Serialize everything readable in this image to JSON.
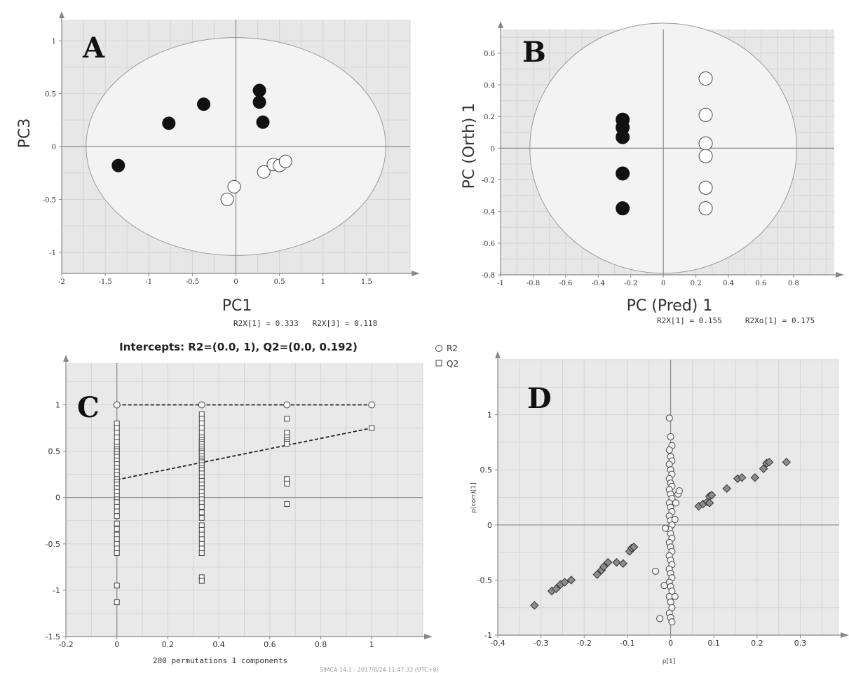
{
  "colors": {
    "plot_bg": "#e7e7e7",
    "ellipse_fill": "#f3f3f3",
    "grid": "#d4d4d4",
    "axis": "#888888",
    "dark": "#111111",
    "light": "#ffffff",
    "marker_gray": "#8c8c8c"
  },
  "footer": "SIMCA 14.1 - 2017/8/24 11:47:33 (UTC+8)",
  "chart_data": [
    {
      "id": "A",
      "type": "scatter",
      "panel_label": "A",
      "xlabel": "PC1",
      "ylabel": "PC3",
      "xlim": [
        -2,
        2
      ],
      "ylim": [
        -1.2,
        1.2
      ],
      "xticks": [
        -2,
        -1.5,
        -1,
        -0.5,
        0,
        0.5,
        1,
        1.5
      ],
      "yticks": [
        -1,
        -0.5,
        0,
        0.5,
        1
      ],
      "note": "R2X[1] = 0.333   R2X[3] = 0.118",
      "ellipse": {
        "rx": 1.72,
        "ry": 1.03
      },
      "series": [
        {
          "style": "filled",
          "points": [
            [
              -1.35,
              -0.18
            ],
            [
              -0.77,
              0.22
            ],
            [
              -0.37,
              0.4
            ],
            [
              0.27,
              0.53
            ],
            [
              0.27,
              0.42
            ],
            [
              0.31,
              0.23
            ]
          ]
        },
        {
          "style": "open",
          "points": [
            [
              -0.1,
              -0.5
            ],
            [
              -0.02,
              -0.38
            ],
            [
              0.32,
              -0.24
            ],
            [
              0.43,
              -0.17
            ],
            [
              0.5,
              -0.18
            ],
            [
              0.57,
              -0.14
            ]
          ]
        }
      ]
    },
    {
      "id": "B",
      "type": "scatter",
      "panel_label": "B",
      "xlabel": "PC (Pred) 1",
      "ylabel": "PC (Orth) 1",
      "xlim": [
        -1,
        1.05
      ],
      "ylim": [
        -0.8,
        0.75
      ],
      "xticks": [
        -1,
        -0.8,
        -0.6,
        -0.4,
        -0.2,
        0,
        0.2,
        0.4,
        0.6,
        0.8
      ],
      "yticks": [
        -0.8,
        -0.6,
        -0.4,
        -0.2,
        0,
        0.2,
        0.4,
        0.6
      ],
      "note": "R2X[1] = 0.155     R2Xo[1] = 0.175",
      "ellipse": {
        "rx": 0.82,
        "ry": 0.79
      },
      "series": [
        {
          "style": "filled",
          "points": [
            [
              -0.25,
              0.18
            ],
            [
              -0.25,
              0.13
            ],
            [
              -0.25,
              0.07
            ],
            [
              -0.25,
              -0.16
            ],
            [
              -0.25,
              -0.38
            ]
          ]
        },
        {
          "style": "open",
          "points": [
            [
              0.26,
              0.44
            ],
            [
              0.26,
              0.21
            ],
            [
              0.26,
              0.03
            ],
            [
              0.26,
              -0.05
            ],
            [
              0.26,
              -0.25
            ],
            [
              0.26,
              -0.38
            ]
          ]
        }
      ]
    },
    {
      "id": "C",
      "type": "scatter",
      "panel_label": "C",
      "title": "Intercepts: R2=(0.0, 1), Q2=(0.0, 0.192)",
      "xlim": [
        -0.2,
        1.2
      ],
      "ylim": [
        -1.5,
        1.45
      ],
      "xticks": [
        -0.2,
        0,
        0.2,
        0.4,
        0.6,
        0.8,
        1
      ],
      "yticks": [
        -1.5,
        -1,
        -0.5,
        0,
        0.5,
        1
      ],
      "note": "200 permutations 1 components",
      "legend": [
        {
          "name": "R2",
          "marker": "circle"
        },
        {
          "name": "Q2",
          "marker": "square"
        }
      ],
      "r2_points": [
        [
          0,
          1
        ],
        [
          0.333,
          1
        ],
        [
          0.667,
          1
        ],
        [
          1,
          1
        ]
      ],
      "q2_points": {
        "0": [
          0.8,
          0.75,
          0.7,
          0.65,
          0.6,
          0.55,
          0.52,
          0.5,
          0.47,
          0.44,
          0.4,
          0.36,
          0.32,
          0.28,
          0.24,
          0.2,
          0.17,
          0.14,
          0.1,
          0.06,
          0.02,
          -0.02,
          -0.05,
          -0.1,
          -0.15,
          -0.2,
          -0.28,
          -0.34,
          -0.4,
          -0.45,
          -0.5,
          -0.55,
          -0.6,
          -0.95,
          -1.13
        ],
        "0.333": [
          0.9,
          0.85,
          0.8,
          0.75,
          0.7,
          0.65,
          0.62,
          0.6,
          0.58,
          0.55,
          0.52,
          0.5,
          0.48,
          0.45,
          0.42,
          0.4,
          0.38,
          0.35,
          0.32,
          0.3,
          0.26,
          0.22,
          0.18,
          0.14,
          0.1,
          0.06,
          0.02,
          -0.02,
          -0.06,
          -0.1,
          -0.16,
          -0.22,
          -0.3,
          -0.35,
          -0.4,
          -0.45,
          -0.5,
          -0.55,
          -0.6,
          -0.86,
          -0.9
        ],
        "0.667": [
          0.85,
          0.7,
          0.65,
          0.62,
          0.6,
          0.58,
          0.2,
          0.15,
          -0.07
        ],
        "1": [
          0.75
        ]
      },
      "r2_line": [
        [
          0,
          1
        ],
        [
          1,
          1
        ]
      ],
      "q2_line": [
        [
          0,
          0.192
        ],
        [
          1,
          0.75
        ]
      ]
    },
    {
      "id": "D",
      "type": "scatter",
      "panel_label": "D",
      "xlabel": "p[1]",
      "ylabel": "p(corr)[1]",
      "xlim": [
        -0.4,
        0.39
      ],
      "ylim": [
        -1,
        1.5
      ],
      "xticks": [
        -0.4,
        -0.3,
        -0.2,
        -0.1,
        0,
        0.1,
        0.2,
        0.3
      ],
      "yticks": [
        -1,
        -0.5,
        0,
        0.5,
        1
      ],
      "diamonds": [
        [
          -0.315,
          -0.73
        ],
        [
          -0.275,
          -0.6
        ],
        [
          -0.265,
          -0.58
        ],
        [
          -0.255,
          -0.54
        ],
        [
          -0.245,
          -0.52
        ],
        [
          -0.23,
          -0.5
        ],
        [
          -0.17,
          -0.45
        ],
        [
          -0.16,
          -0.41
        ],
        [
          -0.155,
          -0.38
        ],
        [
          -0.145,
          -0.34
        ],
        [
          -0.125,
          -0.34
        ],
        [
          -0.11,
          -0.35
        ],
        [
          -0.095,
          -0.24
        ],
        [
          -0.09,
          -0.21
        ],
        [
          -0.085,
          -0.2
        ],
        [
          0.065,
          0.17
        ],
        [
          0.075,
          0.19
        ],
        [
          0.085,
          0.21
        ],
        [
          0.09,
          0.26
        ],
        [
          0.095,
          0.27
        ],
        [
          0.09,
          0.2
        ],
        [
          0.13,
          0.33
        ],
        [
          0.155,
          0.42
        ],
        [
          0.165,
          0.43
        ],
        [
          0.195,
          0.43
        ],
        [
          0.215,
          0.51
        ],
        [
          0.222,
          0.56
        ],
        [
          0.228,
          0.57
        ],
        [
          0.268,
          0.57
        ]
      ],
      "circles_x": [
        -0.003,
        0,
        0.003
      ],
      "circles_y": [
        0.97,
        0.8,
        0.72,
        0.68,
        0.62,
        0.58,
        0.55,
        0.5,
        0.46,
        0.42,
        0.38,
        0.35,
        0.32,
        0.28,
        0.24,
        0.2,
        0.16,
        0.12,
        0.08,
        0.04,
        0.0,
        -0.04,
        -0.08,
        -0.12,
        -0.16,
        -0.2,
        -0.24,
        -0.28,
        -0.32,
        -0.36,
        -0.4,
        -0.44,
        -0.48,
        -0.52,
        -0.56,
        -0.6,
        -0.65,
        -0.7,
        -0.75,
        -0.8,
        -0.84,
        -0.88
      ],
      "outlier_circles": [
        [
          -0.035,
          -0.42
        ],
        [
          -0.025,
          -0.85
        ],
        [
          0.01,
          -0.65
        ],
        [
          0.017,
          0.28
        ],
        [
          0.02,
          0.31
        ],
        [
          0.012,
          0.2
        ],
        [
          -0.015,
          -0.55
        ],
        [
          -0.012,
          -0.03
        ],
        [
          0.01,
          0.05
        ]
      ]
    }
  ]
}
